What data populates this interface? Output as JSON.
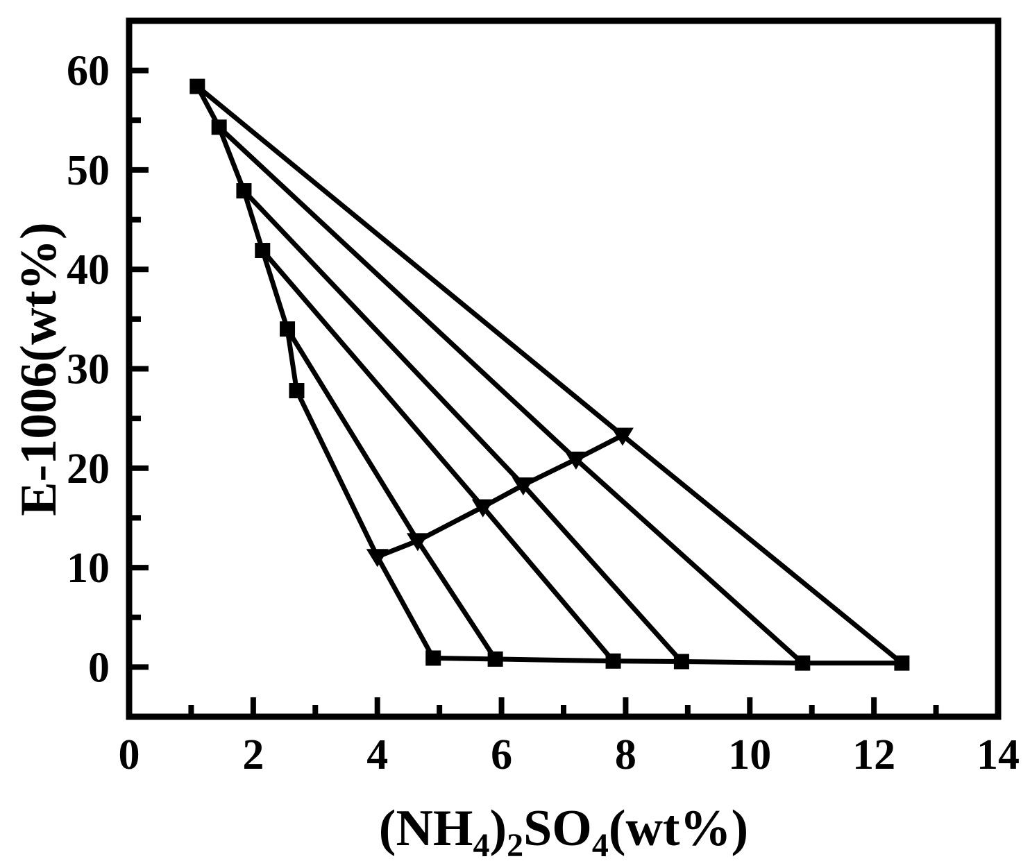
{
  "figure": {
    "background": "#ffffff",
    "ink": "#000000",
    "description": "Phase diagram with binodal curve and tie lines"
  },
  "chart_data": {
    "type": "line",
    "title": "",
    "xlabel_plain": "(NH4)2SO4(wt%)",
    "xlabel_parts": [
      {
        "t": "(NH"
      },
      {
        "t": "4",
        "sub": true
      },
      {
        "t": ")"
      },
      {
        "t": "2",
        "sub": true
      },
      {
        "t": "SO"
      },
      {
        "t": "4",
        "sub": true
      },
      {
        "t": "(wt%)"
      }
    ],
    "ylabel": "E-1006(wt%)",
    "xlim": [
      0,
      14
    ],
    "ylim": [
      -5,
      65
    ],
    "x_major_ticks": [
      0,
      2,
      4,
      6,
      8,
      10,
      12,
      14
    ],
    "x_minor_ticks": [
      1,
      3,
      5,
      7,
      9,
      11,
      13
    ],
    "y_major_ticks": [
      0,
      10,
      20,
      30,
      40,
      50,
      60
    ],
    "y_minor_ticks": [
      5,
      15,
      25,
      35,
      45,
      55
    ],
    "grid": false,
    "legend": null,
    "series": [
      {
        "name": "binodal-top-branch",
        "marker": "square",
        "points": [
          [
            1.1,
            58.4
          ],
          [
            1.45,
            54.3
          ],
          [
            1.85,
            47.9
          ],
          [
            2.15,
            41.9
          ],
          [
            2.55,
            34.0
          ],
          [
            2.7,
            27.8
          ]
        ]
      },
      {
        "name": "binodal-bottom-branch",
        "marker": "square",
        "points": [
          [
            4.9,
            0.9
          ],
          [
            5.9,
            0.8
          ],
          [
            7.8,
            0.6
          ],
          [
            8.9,
            0.55
          ],
          [
            10.85,
            0.4
          ],
          [
            12.45,
            0.4
          ]
        ]
      },
      {
        "name": "feed-composition-line",
        "marker": "triangle-down",
        "points": [
          [
            4.0,
            11.1
          ],
          [
            4.65,
            12.7
          ],
          [
            5.7,
            16.1
          ],
          [
            6.35,
            18.3
          ],
          [
            7.2,
            20.9
          ],
          [
            7.95,
            23.3
          ]
        ]
      },
      {
        "name": "tie-line-1",
        "marker": "none",
        "points": [
          [
            1.1,
            58.4
          ],
          [
            7.95,
            23.3
          ],
          [
            12.45,
            0.4
          ]
        ]
      },
      {
        "name": "tie-line-2",
        "marker": "none",
        "points": [
          [
            1.45,
            54.3
          ],
          [
            7.2,
            20.9
          ],
          [
            10.85,
            0.4
          ]
        ]
      },
      {
        "name": "tie-line-3",
        "marker": "none",
        "points": [
          [
            1.85,
            47.9
          ],
          [
            6.35,
            18.3
          ],
          [
            8.9,
            0.55
          ]
        ]
      },
      {
        "name": "tie-line-4",
        "marker": "none",
        "points": [
          [
            2.15,
            41.9
          ],
          [
            5.7,
            16.1
          ],
          [
            7.8,
            0.6
          ]
        ]
      },
      {
        "name": "tie-line-5",
        "marker": "none",
        "points": [
          [
            2.55,
            34.0
          ],
          [
            4.65,
            12.7
          ],
          [
            5.9,
            0.8
          ]
        ]
      },
      {
        "name": "tie-line-6",
        "marker": "none",
        "points": [
          [
            2.7,
            27.8
          ],
          [
            4.0,
            11.1
          ],
          [
            4.9,
            0.9
          ]
        ]
      }
    ]
  }
}
